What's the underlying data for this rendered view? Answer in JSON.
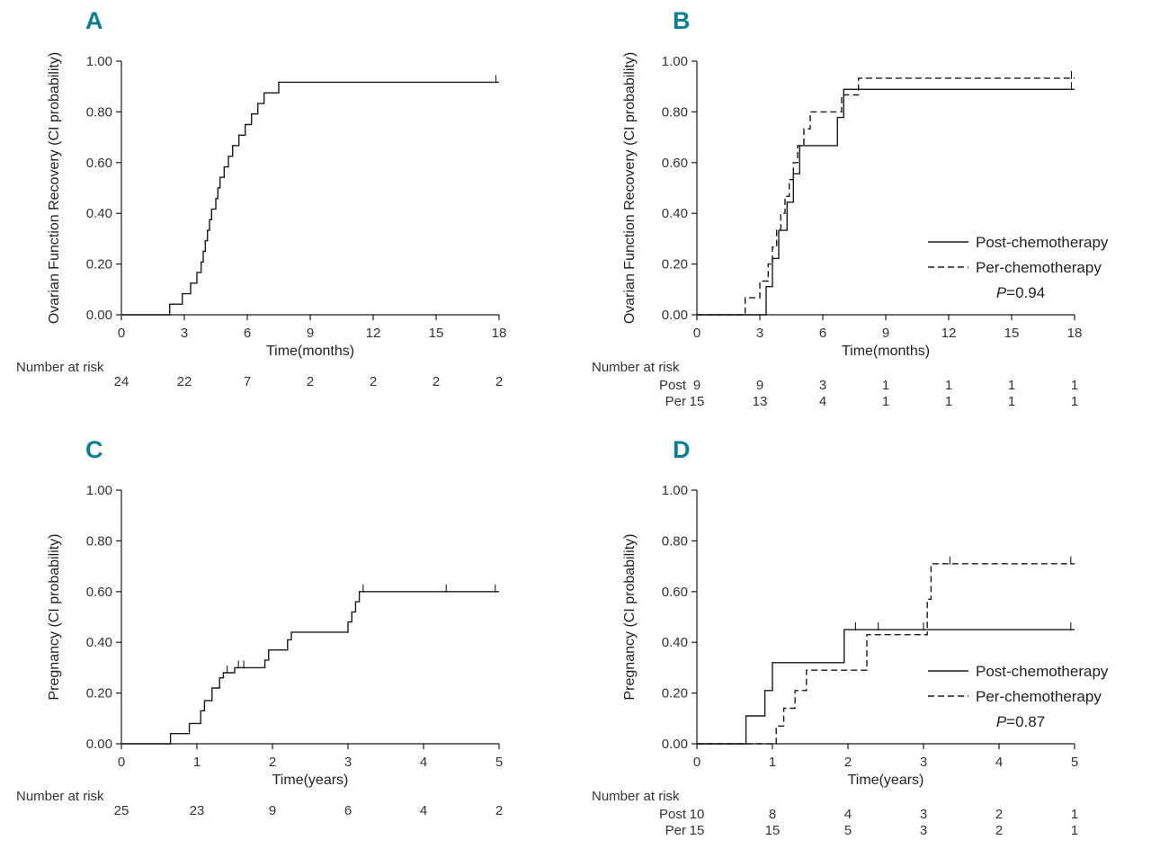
{
  "colors": {
    "accent_teal": "#0c7f8d",
    "line": "#1a1a1a",
    "text": "#333333",
    "background": "#ffffff"
  },
  "chart_data": [
    {
      "panel_label": "A",
      "type": "line",
      "subtype": "step",
      "ylabel": "Ovarian Function Recovery (CI probability)",
      "xlabel": "Time(months)",
      "xlim": [
        0,
        18
      ],
      "ylim": [
        0,
        1
      ],
      "xticks": [
        0,
        3,
        6,
        9,
        12,
        15,
        18
      ],
      "yticks": [
        0,
        0.2,
        0.4,
        0.6,
        0.8,
        1
      ],
      "ytick_labels": [
        "0.00",
        "0.20",
        "0.40",
        "0.60",
        "0.80",
        "1.00"
      ],
      "grid": false,
      "series": [
        {
          "name": "",
          "dash": false,
          "steps": [
            [
              2.3,
              0.042
            ],
            [
              2.9,
              0.083
            ],
            [
              3.3,
              0.125
            ],
            [
              3.6,
              0.167
            ],
            [
              3.8,
              0.208
            ],
            [
              3.9,
              0.25
            ],
            [
              4.0,
              0.292
            ],
            [
              4.1,
              0.333
            ],
            [
              4.2,
              0.375
            ],
            [
              4.3,
              0.417
            ],
            [
              4.5,
              0.458
            ],
            [
              4.6,
              0.5
            ],
            [
              4.7,
              0.542
            ],
            [
              4.9,
              0.583
            ],
            [
              5.1,
              0.625
            ],
            [
              5.3,
              0.667
            ],
            [
              5.6,
              0.708
            ],
            [
              5.9,
              0.75
            ],
            [
              6.2,
              0.792
            ],
            [
              6.5,
              0.833
            ],
            [
              6.8,
              0.875
            ],
            [
              7.5,
              0.917
            ]
          ],
          "censors": [
            [
              17.85,
              0.917
            ]
          ]
        }
      ],
      "number_at_risk": {
        "label": "Number at risk",
        "rows": [
          {
            "name": "",
            "values": [
              24,
              22,
              7,
              2,
              2,
              2,
              2
            ]
          }
        ]
      }
    },
    {
      "panel_label": "B",
      "type": "line",
      "subtype": "step",
      "ylabel": "Ovarian Function Recovery (CI probability)",
      "xlabel": "Time(months)",
      "xlim": [
        0,
        18
      ],
      "ylim": [
        0,
        1
      ],
      "xticks": [
        0,
        3,
        6,
        9,
        12,
        15,
        18
      ],
      "yticks": [
        0,
        0.2,
        0.4,
        0.6,
        0.8,
        1
      ],
      "ytick_labels": [
        "0.00",
        "0.20",
        "0.40",
        "0.60",
        "0.80",
        "1.00"
      ],
      "grid": false,
      "legend": {
        "position": "right-middle",
        "p_text": "P=0.94"
      },
      "series": [
        {
          "name": "Post-chemotherapy",
          "dash": false,
          "steps": [
            [
              3.3,
              0.111
            ],
            [
              3.6,
              0.222
            ],
            [
              3.9,
              0.333
            ],
            [
              4.3,
              0.444
            ],
            [
              4.6,
              0.556
            ],
            [
              4.9,
              0.667
            ],
            [
              6.7,
              0.778
            ],
            [
              7.0,
              0.889
            ]
          ],
          "censors": [
            [
              17.85,
              0.889
            ]
          ]
        },
        {
          "name": "Per-chemotherapy",
          "dash": true,
          "steps": [
            [
              2.3,
              0.067
            ],
            [
              3.0,
              0.133
            ],
            [
              3.4,
              0.2
            ],
            [
              3.6,
              0.267
            ],
            [
              3.8,
              0.333
            ],
            [
              4.0,
              0.4
            ],
            [
              4.2,
              0.467
            ],
            [
              4.4,
              0.533
            ],
            [
              4.6,
              0.6
            ],
            [
              4.8,
              0.667
            ],
            [
              5.1,
              0.733
            ],
            [
              5.4,
              0.8
            ],
            [
              6.9,
              0.867
            ],
            [
              7.7,
              0.933
            ]
          ],
          "censors": [
            [
              17.85,
              0.933
            ]
          ]
        }
      ],
      "number_at_risk": {
        "label": "Number at risk",
        "rows": [
          {
            "name": "Post",
            "values": [
              9,
              9,
              3,
              1,
              1,
              1,
              1
            ]
          },
          {
            "name": "Per",
            "values": [
              15,
              13,
              4,
              1,
              1,
              1,
              1
            ]
          }
        ]
      }
    },
    {
      "panel_label": "C",
      "type": "line",
      "subtype": "step",
      "ylabel": "Pregnancy (CI probability)",
      "xlabel": "Time(years)",
      "xlim": [
        0,
        5
      ],
      "ylim": [
        0,
        1
      ],
      "xticks": [
        0,
        1,
        2,
        3,
        4,
        5
      ],
      "yticks": [
        0,
        0.2,
        0.4,
        0.6,
        0.8,
        1
      ],
      "ytick_labels": [
        "0.00",
        "0.20",
        "0.40",
        "0.60",
        "0.80",
        "1.00"
      ],
      "grid": false,
      "series": [
        {
          "name": "",
          "dash": false,
          "steps": [
            [
              0.65,
              0.04
            ],
            [
              0.9,
              0.08
            ],
            [
              1.05,
              0.13
            ],
            [
              1.1,
              0.17
            ],
            [
              1.2,
              0.22
            ],
            [
              1.3,
              0.26
            ],
            [
              1.35,
              0.28
            ],
            [
              1.5,
              0.3
            ],
            [
              1.9,
              0.33
            ],
            [
              1.95,
              0.37
            ],
            [
              2.2,
              0.41
            ],
            [
              2.25,
              0.44
            ],
            [
              3.0,
              0.48
            ],
            [
              3.05,
              0.52
            ],
            [
              3.1,
              0.56
            ],
            [
              3.15,
              0.6
            ]
          ],
          "censors": [
            [
              1.4,
              0.28
            ],
            [
              1.55,
              0.3
            ],
            [
              1.62,
              0.3
            ],
            [
              3.2,
              0.6
            ],
            [
              4.3,
              0.6
            ],
            [
              4.95,
              0.6
            ]
          ]
        }
      ],
      "number_at_risk": {
        "label": "Number at risk",
        "rows": [
          {
            "name": "",
            "values": [
              25,
              23,
              9,
              6,
              4,
              2
            ]
          }
        ]
      }
    },
    {
      "panel_label": "D",
      "type": "line",
      "subtype": "step",
      "ylabel": "Pregnancy (CI probability)",
      "xlabel": "Time(years)",
      "xlim": [
        0,
        5
      ],
      "ylim": [
        0,
        1
      ],
      "xticks": [
        0,
        1,
        2,
        3,
        4,
        5
      ],
      "yticks": [
        0,
        0.2,
        0.4,
        0.6,
        0.8,
        1
      ],
      "ytick_labels": [
        "0.00",
        "0.20",
        "0.40",
        "0.60",
        "0.80",
        "1.00"
      ],
      "grid": false,
      "legend": {
        "position": "right-middle",
        "p_text": "P=0.87"
      },
      "series": [
        {
          "name": "Post-chemotherapy",
          "dash": false,
          "steps": [
            [
              0.65,
              0.11
            ],
            [
              0.9,
              0.21
            ],
            [
              1.0,
              0.32
            ],
            [
              1.95,
              0.45
            ]
          ],
          "censors": [
            [
              2.1,
              0.45
            ],
            [
              2.4,
              0.45
            ],
            [
              3.0,
              0.45
            ],
            [
              4.95,
              0.45
            ]
          ]
        },
        {
          "name": "Per-chemotherapy",
          "dash": true,
          "steps": [
            [
              1.05,
              0.07
            ],
            [
              1.15,
              0.14
            ],
            [
              1.3,
              0.21
            ],
            [
              1.45,
              0.29
            ],
            [
              2.25,
              0.43
            ],
            [
              3.05,
              0.57
            ],
            [
              3.1,
              0.71
            ]
          ],
          "censors": [
            [
              3.35,
              0.71
            ],
            [
              4.95,
              0.71
            ]
          ]
        }
      ],
      "number_at_risk": {
        "label": "Number at risk",
        "rows": [
          {
            "name": "Post",
            "values": [
              10,
              8,
              4,
              3,
              2,
              1
            ]
          },
          {
            "name": "Per",
            "values": [
              15,
              15,
              5,
              3,
              2,
              1
            ]
          }
        ]
      }
    }
  ]
}
